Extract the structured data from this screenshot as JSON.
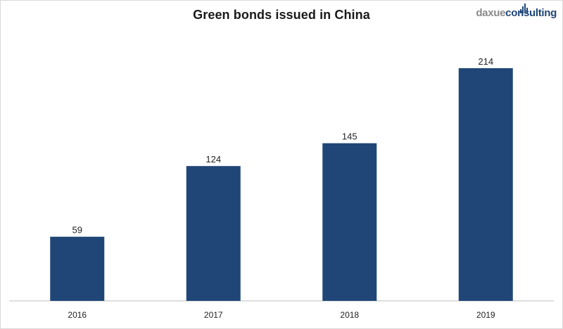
{
  "logo": {
    "part1": "daxue",
    "part2": "consulting"
  },
  "chart_data": {
    "type": "bar",
    "title": "Green bonds issued in China",
    "xlabel": "",
    "ylabel": "",
    "categories": [
      "2016",
      "2017",
      "2018",
      "2019"
    ],
    "values": [
      59,
      124,
      145,
      214
    ],
    "ylim": [
      0,
      240
    ],
    "grid": false,
    "legend": "none",
    "bar_color": "#1f4677"
  }
}
